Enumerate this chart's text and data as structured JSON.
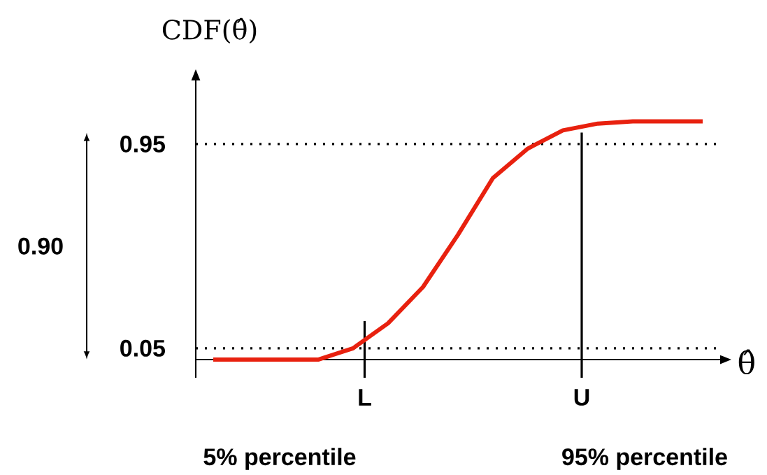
{
  "chart_data": {
    "type": "line",
    "title": "CDF(θ̂)",
    "xlabel": "θ̂",
    "categories": [
      null,
      null,
      null,
      null,
      null,
      null,
      null,
      null,
      null,
      null,
      null,
      null,
      null,
      null,
      null
    ],
    "values": [
      0,
      0,
      0,
      0,
      0.05,
      0.16,
      0.32,
      0.55,
      0.8,
      0.93,
      1.01,
      1.04,
      1.05,
      1.05,
      1.05
    ],
    "color": "#e8210f",
    "ylim": [
      -0.08,
      1.23
    ],
    "yticks": [
      0.05,
      0.95
    ],
    "ref_lines": [
      {
        "axis": "y",
        "value": 0.05,
        "line_style": "dotted"
      },
      {
        "axis": "y",
        "value": 0.95,
        "line_style": "dotted"
      }
    ],
    "annotations": [
      "0.90",
      "5% percentile",
      "95% percentile",
      "L",
      "U"
    ],
    "marker": "none",
    "line_style": "solid"
  }
}
